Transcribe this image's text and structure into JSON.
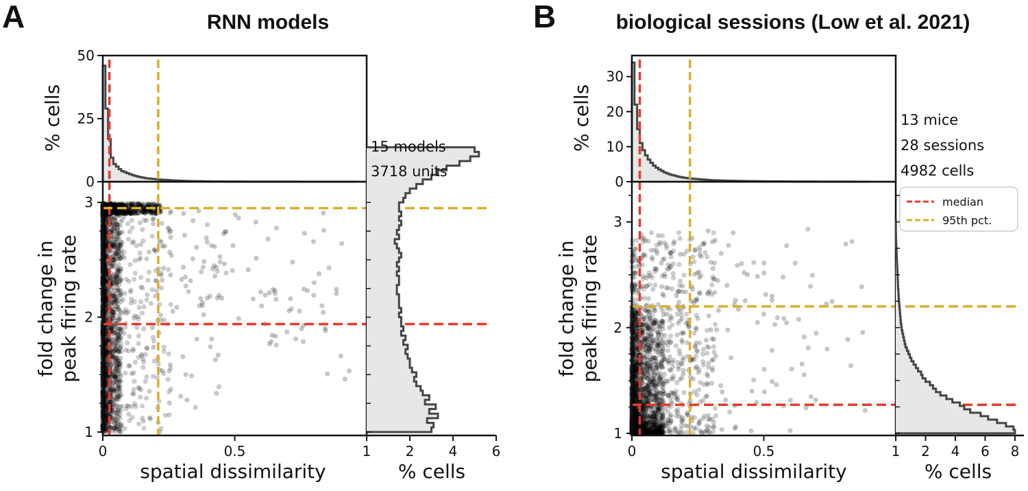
{
  "colors": {
    "median": "#e8392b",
    "pct95": "#d9ae2c",
    "hist_fill": "#e6e8e6",
    "hist_line": "#444444",
    "points": "#000000"
  },
  "legend": {
    "median": "median",
    "pct95": "95th pct."
  },
  "chart_data": [
    {
      "id": "A",
      "type": "scatter",
      "panel_letter": "A",
      "title": "RNN models",
      "xlabel": "spatial dissimilarity",
      "ylabel": [
        "fold change in",
        "peak firing rate"
      ],
      "xlim": [
        0,
        1
      ],
      "ylim": [
        0.97,
        3.18
      ],
      "xticks": [
        {
          "v": 0,
          "label": "0"
        },
        {
          "v": 0.5,
          "label": "0.5"
        },
        {
          "v": 1,
          "label": "1"
        }
      ],
      "yticks": [
        {
          "v": 1,
          "label": "1"
        },
        {
          "v": 2,
          "label": "2"
        },
        {
          "v": 3,
          "label": "3"
        }
      ],
      "median_x": 0.025,
      "pct95_x": 0.21,
      "median_y": 1.94,
      "pct95_y": 2.95,
      "points_summary": "~3718 units; dense near x=0 across all y, strong accumulation near y=3, sparse tail out to x~0.95",
      "top_hist": {
        "ylabel": "% cells",
        "ylim": [
          0,
          50
        ],
        "yticks": [
          {
            "v": 0,
            "label": "0"
          },
          {
            "v": 25,
            "label": "25"
          },
          {
            "v": 50,
            "label": "50"
          }
        ],
        "bin_width": 0.01,
        "values": [
          46,
          29,
          17,
          9.5,
          7,
          6,
          5,
          4.2,
          3.8,
          3.4,
          3,
          2.6,
          2.3,
          2,
          1.8,
          1.6,
          1.4,
          1.3,
          1.2,
          1.1,
          1,
          0.9,
          0.8,
          0.75,
          0.7,
          0.6,
          0.55,
          0.5,
          0.45,
          0.4,
          0.35,
          0.3,
          0.3,
          0.25,
          0.25,
          0.2,
          0.2,
          0.2,
          0.15,
          0.15,
          0.15,
          0.1,
          0.1,
          0.1,
          0.1,
          0.1,
          0.08,
          0.08,
          0.08,
          0.08,
          0.06,
          0.06,
          0.06,
          0.06,
          0.05,
          0.05,
          0.05,
          0.05,
          0.04,
          0.04,
          0.04,
          0.04,
          0.03,
          0.03,
          0.03,
          0.03,
          0.03,
          0.02,
          0.02,
          0.02,
          0.02,
          0.02,
          0.02,
          0.02,
          0.02,
          0.01,
          0.01,
          0.01,
          0.01,
          0.01,
          0.01,
          0.01,
          0.01,
          0.01,
          0.01,
          0.01,
          0.01,
          0.01,
          0.01,
          0.01,
          0.01,
          0.01,
          0.01,
          0.01,
          0.01,
          0.01
        ]
      },
      "right_hist": {
        "xlabel": "% cells",
        "xlim": [
          0,
          6
        ],
        "xticks": [
          {
            "v": 2,
            "label": "2"
          },
          {
            "v": 4,
            "label": "4"
          },
          {
            "v": 6,
            "label": "6"
          }
        ],
        "bin_start": 1.0,
        "bin_width": 0.04,
        "values": [
          3.0,
          3.1,
          2.8,
          3.3,
          2.9,
          3.2,
          2.7,
          2.9,
          2.6,
          2.5,
          2.3,
          2.2,
          2.3,
          2.1,
          2.0,
          2.0,
          1.9,
          1.8,
          1.9,
          1.7,
          1.8,
          1.6,
          1.7,
          1.6,
          1.6,
          1.5,
          1.6,
          1.5,
          1.5,
          1.5,
          1.4,
          1.4,
          1.5,
          1.5,
          1.4,
          1.5,
          1.4,
          1.5,
          1.6,
          1.5,
          1.4,
          1.3,
          1.5,
          1.4,
          1.5,
          1.6,
          1.5,
          1.6,
          1.5,
          1.5,
          1.7,
          1.8,
          2.0,
          2.3,
          2.6,
          3.0,
          3.3,
          3.7,
          4.3,
          4.8,
          5.2,
          5.0
        ]
      },
      "annotations": [
        "15 models",
        "3718 units"
      ]
    },
    {
      "id": "B",
      "type": "scatter",
      "panel_letter": "B",
      "title": "biological sessions (Low et al. 2021)",
      "xlabel": "spatial dissimilarity",
      "ylabel": [
        "fold change in",
        "peak firing rate"
      ],
      "xlim": [
        0,
        1
      ],
      "ylim": [
        0.98,
        3.38
      ],
      "xticks": [
        {
          "v": 0,
          "label": "0"
        },
        {
          "v": 0.5,
          "label": "0.5"
        },
        {
          "v": 1,
          "label": "1"
        }
      ],
      "yticks": [
        {
          "v": 1,
          "label": "1"
        },
        {
          "v": 2,
          "label": "2"
        },
        {
          "v": 3,
          "label": "3"
        }
      ],
      "median_x": 0.03,
      "pct95_x": 0.22,
      "median_y": 1.27,
      "pct95_y": 2.2,
      "points_summary": "~4982 cells; densest near x=0 and y=1, spread thinning toward higher x and y",
      "top_hist": {
        "ylabel": "% cells",
        "ylim": [
          0,
          36
        ],
        "yticks": [
          {
            "v": 0,
            "label": "0"
          },
          {
            "v": 10,
            "label": "10"
          },
          {
            "v": 20,
            "label": "20"
          },
          {
            "v": 30,
            "label": "30"
          }
        ],
        "bin_width": 0.01,
        "values": [
          34,
          22,
          15,
          11,
          9,
          7.5,
          6.3,
          5.4,
          4.6,
          4,
          3.5,
          3.1,
          2.7,
          2.4,
          2.1,
          1.9,
          1.7,
          1.5,
          1.35,
          1.2,
          1.1,
          1,
          0.9,
          0.85,
          0.8,
          0.7,
          0.65,
          0.6,
          0.55,
          0.5,
          0.45,
          0.42,
          0.4,
          0.37,
          0.35,
          0.32,
          0.3,
          0.28,
          0.26,
          0.25,
          0.23,
          0.22,
          0.2,
          0.19,
          0.18,
          0.17,
          0.16,
          0.15,
          0.14,
          0.13,
          0.12,
          0.12,
          0.11,
          0.1,
          0.1,
          0.09,
          0.09,
          0.08,
          0.08,
          0.07,
          0.07,
          0.06,
          0.06,
          0.06,
          0.05,
          0.05,
          0.05,
          0.04,
          0.04,
          0.04,
          0.04,
          0.03,
          0.03,
          0.03,
          0.03,
          0.03,
          0.02,
          0.02,
          0.02,
          0.02,
          0.02,
          0.02,
          0.02,
          0.02,
          0.01,
          0.01,
          0.01,
          0.01,
          0.01,
          0.01
        ]
      },
      "right_hist": {
        "xlabel": "% cells",
        "xlim": [
          0,
          8.6
        ],
        "xticks": [
          {
            "v": 2,
            "label": "2"
          },
          {
            "v": 4,
            "label": "4"
          },
          {
            "v": 6,
            "label": "6"
          },
          {
            "v": 8,
            "label": "8"
          }
        ],
        "bin_start": 1.0,
        "bin_width": 0.0325,
        "values": [
          8.0,
          7.9,
          7.4,
          6.8,
          6.2,
          5.7,
          5.0,
          4.6,
          4.3,
          3.8,
          3.4,
          3.0,
          2.7,
          2.5,
          2.3,
          2.0,
          1.8,
          1.7,
          1.5,
          1.35,
          1.2,
          1.05,
          0.95,
          0.85,
          0.75,
          0.65,
          0.6,
          0.55,
          0.5,
          0.45,
          0.4,
          0.37,
          0.34,
          0.32,
          0.3,
          0.28,
          0.26,
          0.24,
          0.22,
          0.2,
          0.19,
          0.18,
          0.16,
          0.15,
          0.14,
          0.13,
          0.12,
          0.11,
          0.1,
          0.09,
          0.08,
          0.07,
          0.06,
          0.05,
          0.04,
          0.03,
          0.02,
          0.02,
          0.01,
          0.01,
          0.01,
          0.01
        ]
      },
      "annotations": [
        "13 mice",
        "28 sessions",
        "4982 cells"
      ]
    }
  ]
}
